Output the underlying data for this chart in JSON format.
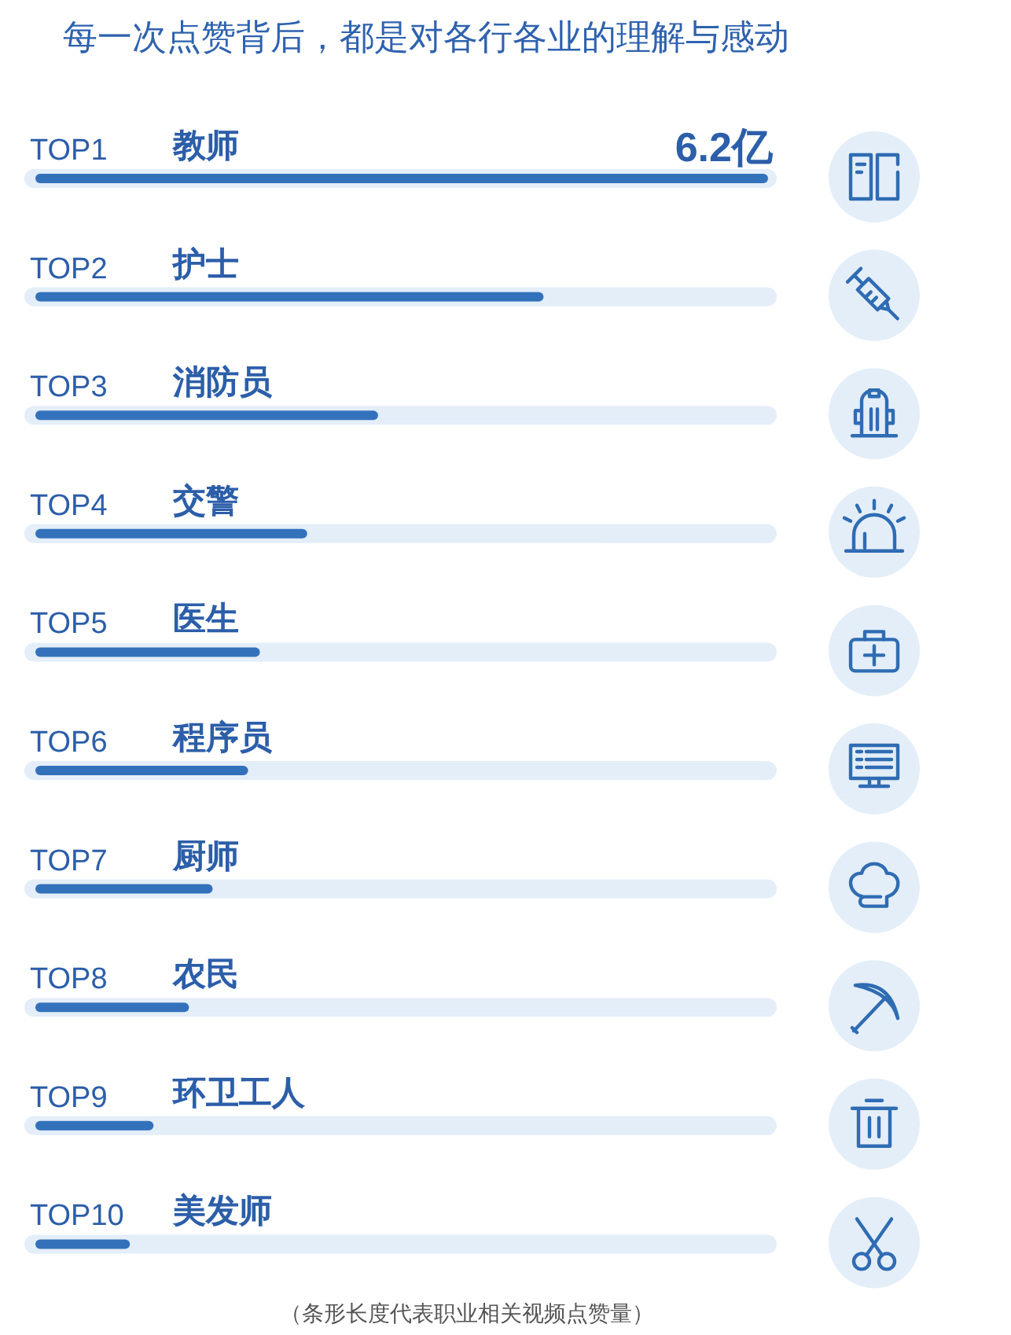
{
  "chart_data": {
    "type": "bar",
    "orientation": "horizontal",
    "title": "每一次点赞背后，都是对各行各业的理解与感动",
    "categories": [
      "教师",
      "护士",
      "消防员",
      "交警",
      "医生",
      "程序员",
      "厨师",
      "农民",
      "环卫工人",
      "美发师"
    ],
    "values": [
      6.2,
      4.3,
      2.9,
      2.3,
      1.9,
      1.8,
      1.5,
      1.3,
      1.0,
      0.8
    ],
    "color": "#3372bb",
    "value_labels": [
      "6.2亿",
      null,
      null,
      null,
      null,
      null,
      null,
      null,
      null,
      null
    ],
    "annotations": [
      "TOP1",
      "TOP2",
      "TOP3",
      "TOP4",
      "TOP5",
      "TOP6",
      "TOP7",
      "TOP8",
      "TOP9",
      "TOP10",
      "（条形长度代表职业相关视频点赞量）"
    ]
  }
}
